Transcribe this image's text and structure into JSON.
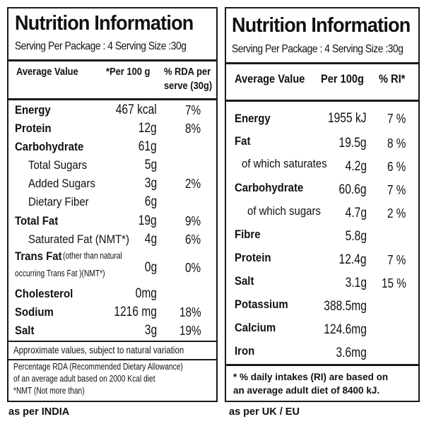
{
  "india": {
    "title": "Nutrition Information",
    "serving": "Serving Per Package : 4   Serving Size :30g",
    "headers": {
      "nutrient": "Average Value",
      "per100": "*Per 100 g",
      "rda_line1": "% RDA per",
      "rda_line2": "serve (30g)"
    },
    "rows": [
      {
        "name": "Energy",
        "value": "467 kcal",
        "pct": "7%"
      },
      {
        "name": "Protein",
        "value": "12g",
        "pct": "8%"
      },
      {
        "name": "Carbohydrate",
        "value": "61g",
        "pct": ""
      },
      {
        "name": "Total Sugars",
        "value": "5g",
        "pct": ""
      },
      {
        "name": "Added Sugars",
        "value": "3g",
        "pct": "2%"
      },
      {
        "name": "Dietary Fiber",
        "value": "6g",
        "pct": ""
      },
      {
        "name": "Total Fat",
        "value": "19g",
        "pct": "9%"
      },
      {
        "name": "Saturated Fat (NMT*)",
        "value": "4g",
        "pct": "6%"
      },
      {
        "name_bold": "Trans Fat",
        "name_small": " (other than natural",
        "name_line2": "occurring Trans Fat )(NMT*)",
        "value": "0g",
        "pct": "0%"
      },
      {
        "name": "Cholesterol",
        "value": "0mg",
        "pct": ""
      },
      {
        "name": "Sodium",
        "value": "1216 mg",
        "pct": "18%"
      },
      {
        "name": "Salt",
        "value": "3g",
        "pct": "19%"
      }
    ],
    "note": "Approximate values, subject to natural variation",
    "footnote_line1": "Percentage RDA (Recommended Dietary Allowance)",
    "footnote_line2": "of an average adult based on 2000 Kcal diet",
    "footnote_line3": "*NMT (Not more than)",
    "caption": "as per  INDIA"
  },
  "uk": {
    "title": "Nutrition Information",
    "serving": "Serving Per Package : 4   Serving Size :30g",
    "headers": {
      "nutrient": "Average Value",
      "per100": "Per 100g",
      "ri": "% RI*"
    },
    "rows": [
      {
        "name": "Energy",
        "value": "1955 kJ",
        "pct": "7 %"
      },
      {
        "name": "Fat",
        "value": "19.5g",
        "pct": "8 %"
      },
      {
        "name": "of which saturates",
        "value": "4.2g",
        "pct": "6 %"
      },
      {
        "name": "Carbohydrate",
        "value": "60.6g",
        "pct": "7 %"
      },
      {
        "name": "of which sugars",
        "value": "4.7g",
        "pct": "2 %"
      },
      {
        "name": "Fibre",
        "value": "5.8g",
        "pct": ""
      },
      {
        "name": "Protein",
        "value": "12.4g",
        "pct": "7 %"
      },
      {
        "name": "Salt",
        "value": "3.1g",
        "pct": "15 %"
      },
      {
        "name": "Potassium",
        "value": "388.5mg",
        "pct": ""
      },
      {
        "name": "Calcium",
        "value": "124.6mg",
        "pct": ""
      },
      {
        "name": "Iron",
        "value": "3.6mg",
        "pct": ""
      }
    ],
    "footnote_line1": "* % daily intakes (RI) are based on",
    "footnote_line2": "an average adult diet of 8400 kJ.",
    "caption": "as per UK / EU"
  }
}
